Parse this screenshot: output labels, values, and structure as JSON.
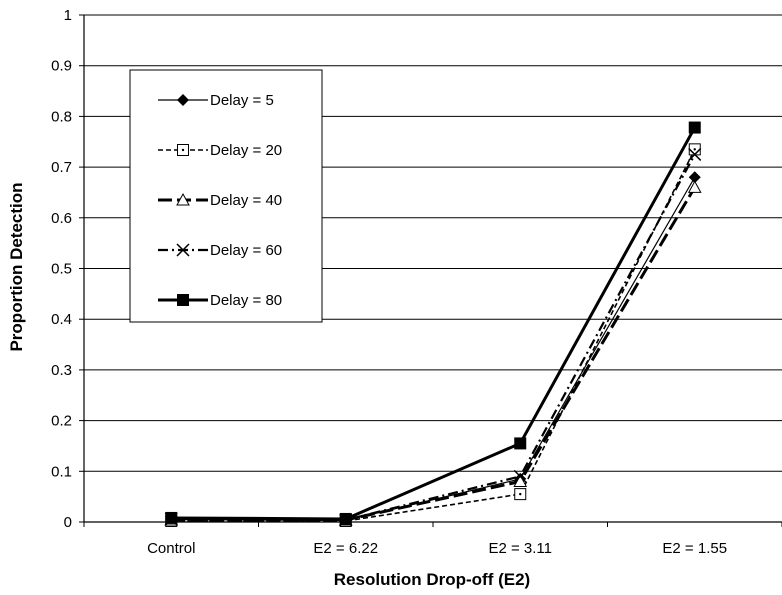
{
  "chart_data": {
    "type": "line",
    "title": "",
    "xlabel": "Resolution Drop-off (E2)",
    "ylabel": "Proportion Detection",
    "categories": [
      "Control",
      "E2 = 6.22",
      "E2 = 3.11",
      "E2 = 1.55"
    ],
    "yticks": [
      "0",
      "0.1",
      "0.2",
      "0.3",
      "0.4",
      "0.5",
      "0.6",
      "0.7",
      "0.8",
      "0.9",
      "1"
    ],
    "ylim": [
      0,
      1
    ],
    "grid": true,
    "legend_position": "upper-left",
    "series": [
      {
        "name": "Delay = 5",
        "values": [
          0.005,
          0.003,
          0.085,
          0.68
        ],
        "marker": "diamond-filled",
        "line": "solid-thin"
      },
      {
        "name": "Delay = 20",
        "values": [
          0.002,
          0.002,
          0.055,
          0.735
        ],
        "marker": "square-open-dot",
        "line": "dashed-thin"
      },
      {
        "name": "Delay = 40",
        "values": [
          0.004,
          0.004,
          0.08,
          0.66
        ],
        "marker": "triangle-open",
        "line": "longdash-thick"
      },
      {
        "name": "Delay = 60",
        "values": [
          0.006,
          0.004,
          0.09,
          0.725
        ],
        "marker": "cross",
        "line": "dashdot-thick"
      },
      {
        "name": "Delay = 80",
        "values": [
          0.008,
          0.006,
          0.155,
          0.778
        ],
        "marker": "square-filled",
        "line": "solid-thick"
      }
    ]
  }
}
